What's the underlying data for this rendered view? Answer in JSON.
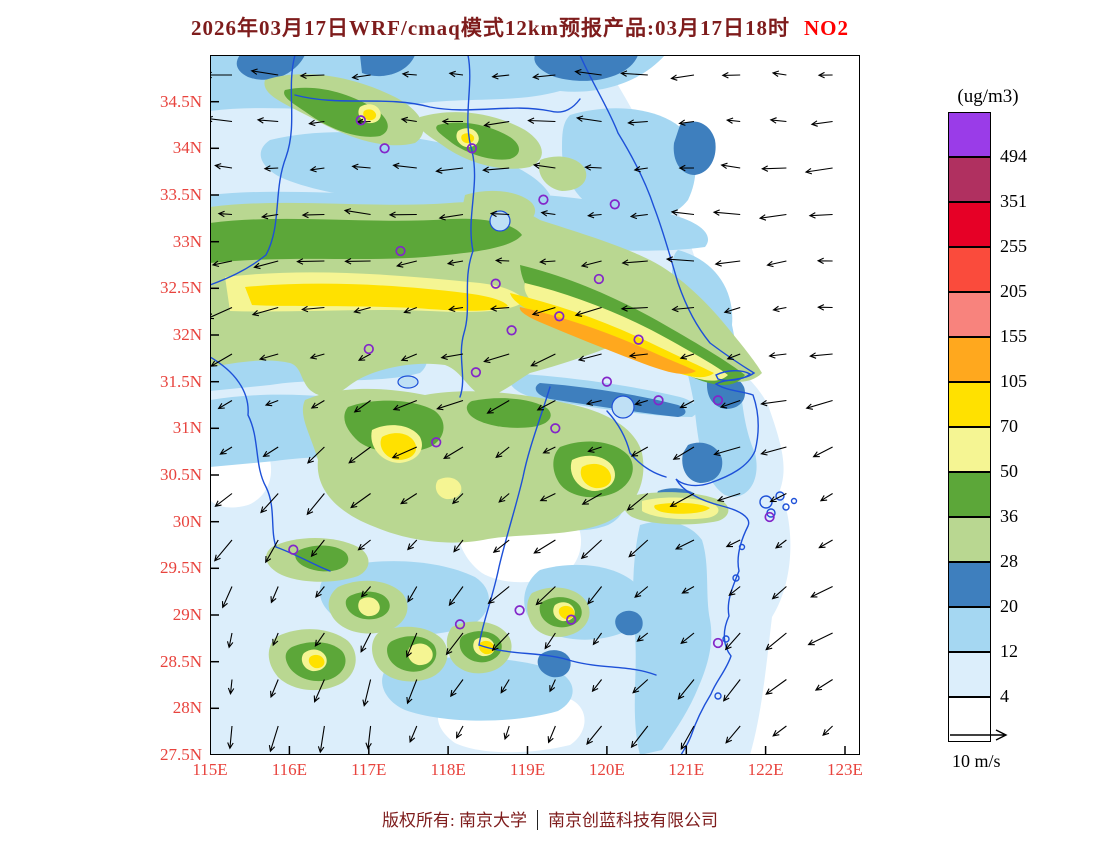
{
  "title": {
    "main": "2026年03月17日WRF/cmaq模式12km预报产品:03月17日18时",
    "species": "NO2"
  },
  "colorbar": {
    "unit": "(ug/m3)"
  },
  "wind_reference": {
    "label": "10 m/s",
    "speed": 10,
    "unit": "m/s"
  },
  "footer": {
    "left": "版权所有: 南京大学",
    "right": "南京创蓝科技有限公司"
  },
  "chart_data": {
    "type": "heatmap",
    "title": "2026年03月17日WRF/cmaq模式12km预报产品:03月17日18时 NO2",
    "variable": "NO2",
    "unit": "ug/m3",
    "x_tick_labels": [
      "115E",
      "116E",
      "117E",
      "118E",
      "119E",
      "120E",
      "121E",
      "122E",
      "123E"
    ],
    "y_tick_labels": [
      "34.5N",
      "34N",
      "33.5N",
      "33N",
      "32.5N",
      "32N",
      "31.5N",
      "31N",
      "30.5N",
      "30N",
      "29.5N",
      "29N",
      "28.5N",
      "28N",
      "27.5N"
    ],
    "lon_range": [
      115,
      123.2
    ],
    "lat_range": [
      27.5,
      35.0
    ],
    "contour_levels": [
      4,
      12,
      20,
      28,
      36,
      50,
      70,
      105,
      155,
      205,
      255,
      351,
      494
    ],
    "palette_low_to_high": [
      "#ffffff",
      "#dceefb",
      "#a5d7f2",
      "#3e7fbe",
      "#b9d791",
      "#5ca739",
      "#f5f593",
      "#ffe100",
      "#ffa81e",
      "#f8837d",
      "#fa4b3c",
      "#e60026",
      "#b03060",
      "#9a3ce8"
    ],
    "wind_vectors": {
      "reference_speed_m_s": 10,
      "pattern": "easterly flow (arrows pointing west) over the north and the sea, veering to north-northeasterly (arrows pointing south to southwest) over the southern half"
    },
    "city_markers_lon_lat": [
      [
        116.9,
        34.3
      ],
      [
        117.2,
        34.0
      ],
      [
        118.3,
        34.0
      ],
      [
        119.2,
        33.45
      ],
      [
        120.1,
        33.4
      ],
      [
        117.4,
        32.9
      ],
      [
        118.6,
        32.55
      ],
      [
        119.9,
        32.6
      ],
      [
        119.4,
        32.2
      ],
      [
        118.8,
        32.05
      ],
      [
        120.4,
        31.95
      ],
      [
        117.0,
        31.85
      ],
      [
        118.35,
        31.6
      ],
      [
        120.0,
        31.5
      ],
      [
        120.65,
        31.3
      ],
      [
        121.4,
        31.3
      ],
      [
        119.35,
        31.0
      ],
      [
        117.85,
        30.85
      ],
      [
        122.05,
        30.05
      ],
      [
        116.05,
        29.7
      ],
      [
        118.9,
        29.05
      ],
      [
        118.15,
        28.9
      ],
      [
        119.55,
        28.95
      ],
      [
        121.4,
        28.7
      ]
    ],
    "description": "Filled NO2 contours over eastern China: an elevated WSW-ENE band of 50-155 ug/m3 along ~31.8-33N from 115E to the coast near 121.5E, with a 105-155 orange core between 118E and 121E; secondary 36-105 areas over 29.5-31.5N and scattered cells south of 29.5N; mostly 4-28 elsewhere over land and near-zero offshore."
  }
}
